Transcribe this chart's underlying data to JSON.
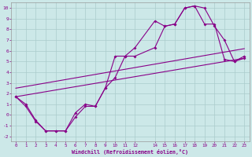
{
  "title": "",
  "xlabel": "Windchill (Refroidissement éolien,°C)",
  "bg_color": "#cce8e8",
  "grid_color": "#aacccc",
  "line_color": "#880088",
  "xlim": [
    -0.5,
    23.5
  ],
  "ylim": [
    -2.5,
    10.5
  ],
  "xtick_positions": [
    0,
    1,
    2,
    3,
    4,
    5,
    6,
    7,
    8,
    9,
    10,
    11,
    12,
    14,
    15,
    16,
    17,
    18,
    19,
    20,
    21,
    22,
    23
  ],
  "xtick_labels": [
    "0",
    "1",
    "2",
    "3",
    "4",
    "5",
    "6",
    "7",
    "8",
    "9",
    "10",
    "11",
    "12",
    "14",
    "15",
    "16",
    "17",
    "18",
    "19",
    "20",
    "21",
    "22",
    "23"
  ],
  "ytick_positions": [
    -2,
    -1,
    0,
    1,
    2,
    3,
    4,
    5,
    6,
    7,
    8,
    9,
    10
  ],
  "ytick_labels": [
    "-2",
    "-1",
    "0",
    "1",
    "2",
    "3",
    "4",
    "5",
    "6",
    "7",
    "8",
    "9",
    "10"
  ],
  "line1_x": [
    0,
    1,
    2,
    3,
    4,
    5,
    6,
    7,
    8,
    9,
    10,
    11,
    12,
    14,
    15,
    16,
    17,
    18,
    19,
    20,
    21,
    22,
    23
  ],
  "line1_y": [
    1.7,
    1.0,
    -0.5,
    -1.5,
    -1.5,
    -1.5,
    0.2,
    1.0,
    0.8,
    2.5,
    5.5,
    5.5,
    6.3,
    8.8,
    8.3,
    8.5,
    10.0,
    10.2,
    10.0,
    8.3,
    7.0,
    5.0,
    5.5
  ],
  "line2_x": [
    0,
    1,
    2,
    3,
    4,
    5,
    6,
    7,
    8,
    9,
    10,
    11,
    12,
    14,
    15,
    16,
    17,
    18,
    19,
    20,
    21,
    22,
    23
  ],
  "line2_y": [
    1.7,
    0.8,
    -0.6,
    -1.5,
    -1.5,
    -1.5,
    -0.2,
    0.8,
    0.8,
    2.5,
    3.5,
    5.5,
    5.5,
    6.3,
    8.3,
    8.5,
    10.0,
    10.2,
    8.5,
    8.5,
    5.2,
    5.0,
    5.3
  ],
  "line3_x": [
    0,
    23
  ],
  "line3_y": [
    1.7,
    5.3
  ],
  "line4_x": [
    0,
    23
  ],
  "line4_y": [
    2.5,
    6.2
  ]
}
